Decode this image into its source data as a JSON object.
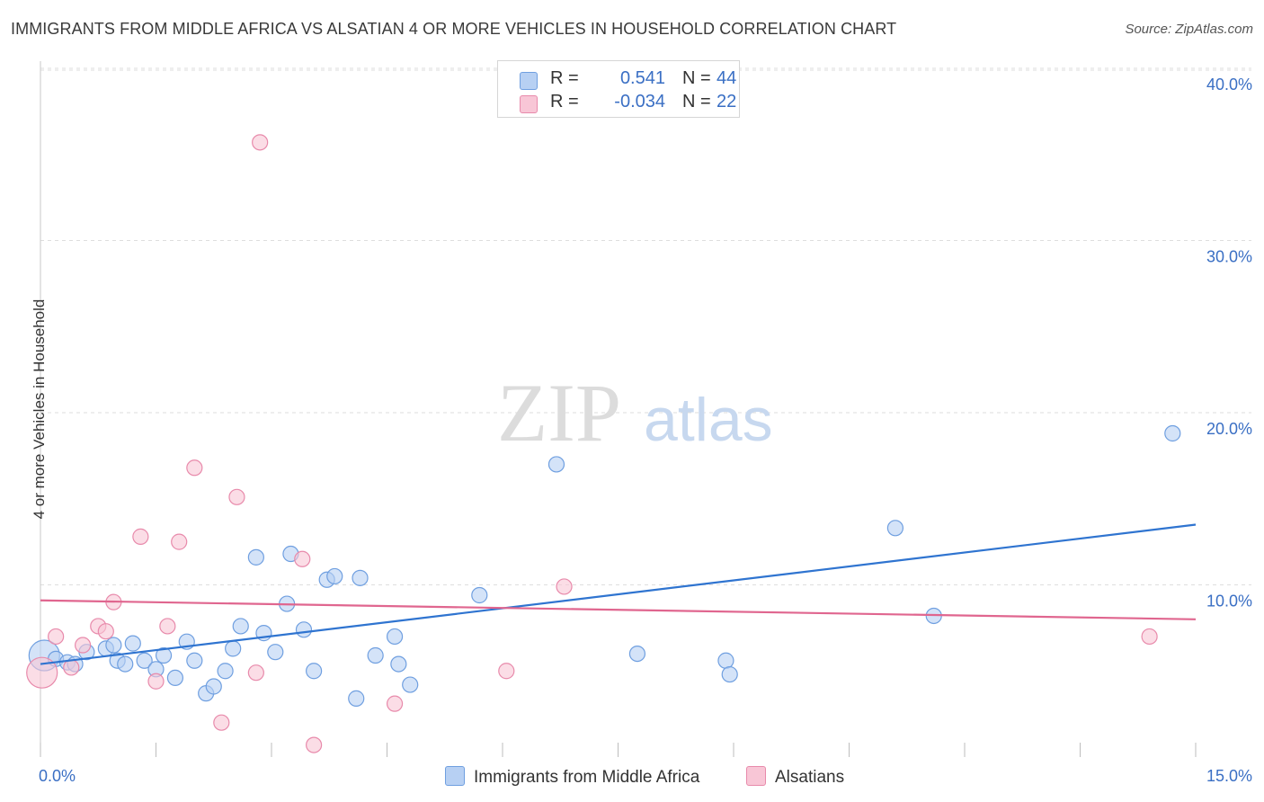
{
  "header": {
    "title": "IMMIGRANTS FROM MIDDLE AFRICA VS ALSATIAN 4 OR MORE VEHICLES IN HOUSEHOLD CORRELATION CHART",
    "source": "Source: ZipAtlas.com"
  },
  "watermark": {
    "zip": "ZIP",
    "atlas": "atlas"
  },
  "legend": {
    "r_label": "R =",
    "n_label": "N =",
    "series": [
      {
        "r_value": "0.541",
        "n_value": "44"
      },
      {
        "r_value": "-0.034",
        "n_value": "22"
      }
    ]
  },
  "bottom_legend": {
    "items": [
      {
        "label": "Immigrants from Middle Africa"
      },
      {
        "label": "Alsatians"
      }
    ]
  },
  "colors": {
    "blue_fill": "#b7d0f3",
    "blue_stroke": "#6f9fe0",
    "blue_line": "#2f74d0",
    "pink_fill": "#f8c6d6",
    "pink_stroke": "#e88aab",
    "pink_line": "#e0668f",
    "tick_text": "#3a6fc4",
    "grid": "#dedede"
  },
  "chart_data": {
    "type": "scatter",
    "title": "IMMIGRANTS FROM MIDDLE AFRICA VS ALSATIAN 4 OR MORE VEHICLES IN HOUSEHOLD CORRELATION CHART",
    "xlabel": "",
    "ylabel": "4 or more Vehicles in Household",
    "xlim": [
      0,
      15
    ],
    "ylim": [
      0,
      41
    ],
    "x_tick_labels": [
      "0.0%",
      "15.0%"
    ],
    "y_ticks": [
      10,
      20,
      30,
      40
    ],
    "y_tick_labels": [
      "10.0%",
      "20.0%",
      "30.0%",
      "40.0%"
    ],
    "grid": true,
    "series": [
      {
        "name": "Immigrants from Middle Africa",
        "color": "blue",
        "trend": {
          "x": [
            0,
            15
          ],
          "y": [
            5.4,
            13.5
          ]
        },
        "points": [
          {
            "x": 0.05,
            "y": 5.9,
            "big": true
          },
          {
            "x": 0.2,
            "y": 5.7
          },
          {
            "x": 0.35,
            "y": 5.5
          },
          {
            "x": 0.45,
            "y": 5.4
          },
          {
            "x": 0.6,
            "y": 6.1
          },
          {
            "x": 0.85,
            "y": 6.3
          },
          {
            "x": 0.95,
            "y": 6.5
          },
          {
            "x": 1.0,
            "y": 5.6
          },
          {
            "x": 1.1,
            "y": 5.4
          },
          {
            "x": 1.2,
            "y": 6.6
          },
          {
            "x": 1.35,
            "y": 5.6
          },
          {
            "x": 1.5,
            "y": 5.1
          },
          {
            "x": 1.6,
            "y": 5.9
          },
          {
            "x": 1.75,
            "y": 4.6
          },
          {
            "x": 1.9,
            "y": 6.7
          },
          {
            "x": 2.0,
            "y": 5.6
          },
          {
            "x": 2.15,
            "y": 3.7
          },
          {
            "x": 2.25,
            "y": 4.1
          },
          {
            "x": 2.4,
            "y": 5.0
          },
          {
            "x": 2.5,
            "y": 6.3
          },
          {
            "x": 2.6,
            "y": 7.6
          },
          {
            "x": 2.8,
            "y": 11.6
          },
          {
            "x": 2.9,
            "y": 7.2
          },
          {
            "x": 3.05,
            "y": 6.1
          },
          {
            "x": 3.2,
            "y": 8.9
          },
          {
            "x": 3.25,
            "y": 11.8
          },
          {
            "x": 3.42,
            "y": 7.4
          },
          {
            "x": 3.55,
            "y": 5.0
          },
          {
            "x": 3.72,
            "y": 10.3
          },
          {
            "x": 3.82,
            "y": 10.5
          },
          {
            "x": 4.1,
            "y": 3.4
          },
          {
            "x": 4.15,
            "y": 10.4
          },
          {
            "x": 4.35,
            "y": 5.9
          },
          {
            "x": 4.6,
            "y": 7.0
          },
          {
            "x": 4.65,
            "y": 5.4
          },
          {
            "x": 4.8,
            "y": 4.2
          },
          {
            "x": 5.7,
            "y": 9.4
          },
          {
            "x": 6.7,
            "y": 17.0
          },
          {
            "x": 7.75,
            "y": 6.0
          },
          {
            "x": 8.9,
            "y": 5.6
          },
          {
            "x": 8.95,
            "y": 4.8
          },
          {
            "x": 11.1,
            "y": 13.3
          },
          {
            "x": 11.6,
            "y": 8.2
          },
          {
            "x": 14.7,
            "y": 18.8
          }
        ]
      },
      {
        "name": "Alsatians",
        "color": "pink",
        "trend": {
          "x": [
            0,
            15
          ],
          "y": [
            9.1,
            8.0
          ]
        },
        "points": [
          {
            "x": 0.02,
            "y": 4.9,
            "big": true
          },
          {
            "x": 0.2,
            "y": 7.0
          },
          {
            "x": 0.4,
            "y": 5.2
          },
          {
            "x": 0.55,
            "y": 6.5
          },
          {
            "x": 0.75,
            "y": 7.6
          },
          {
            "x": 0.85,
            "y": 7.3
          },
          {
            "x": 0.95,
            "y": 9.0
          },
          {
            "x": 1.3,
            "y": 12.8
          },
          {
            "x": 1.5,
            "y": 4.4
          },
          {
            "x": 1.65,
            "y": 7.6
          },
          {
            "x": 1.8,
            "y": 12.5
          },
          {
            "x": 2.0,
            "y": 16.8
          },
          {
            "x": 2.35,
            "y": 2.0
          },
          {
            "x": 2.55,
            "y": 15.1
          },
          {
            "x": 2.8,
            "y": 4.9
          },
          {
            "x": 2.85,
            "y": 35.7
          },
          {
            "x": 3.4,
            "y": 11.5
          },
          {
            "x": 3.55,
            "y": 0.7
          },
          {
            "x": 4.6,
            "y": 3.1
          },
          {
            "x": 6.05,
            "y": 5.0
          },
          {
            "x": 6.8,
            "y": 9.9
          },
          {
            "x": 14.4,
            "y": 7.0
          }
        ]
      }
    ]
  }
}
